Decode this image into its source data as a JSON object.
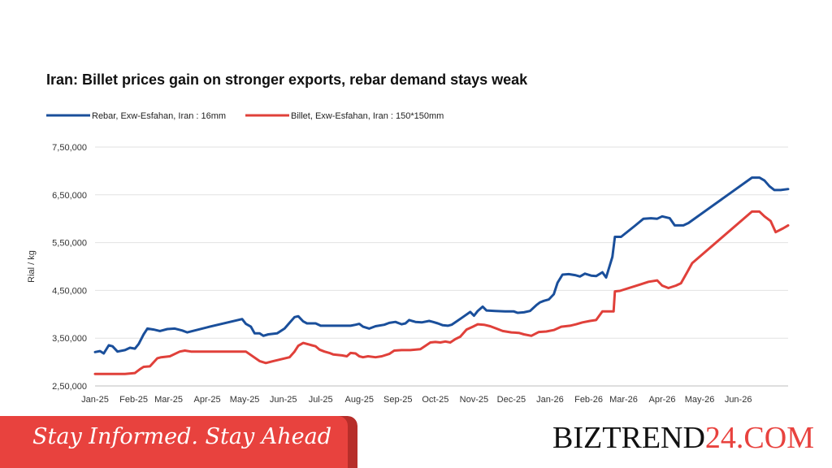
{
  "colors": {
    "rebar": "#1a4f9b",
    "billet": "#e0403a",
    "banner_red": "#e8423e",
    "banner_shade": "#b72e2a",
    "grid": "#e2e2e2",
    "axis_text": "#333333",
    "brand_dark": "#111111",
    "brand_red": "#e8423e"
  },
  "banner": {
    "tagline": "Stay Informed. Stay Ahead",
    "brand_part1": "BIZTREND",
    "brand_part2": "24",
    "brand_part3": ".COM"
  },
  "chart_data": {
    "type": "line",
    "title": "Iran: Billet prices gain on stronger exports, rebar demand stays weak",
    "ylabel": "Rial / kg",
    "xlabel": "",
    "ylim": [
      250000,
      750000
    ],
    "yticks": [
      {
        "value": 250000,
        "label": "2,50,000"
      },
      {
        "value": 350000,
        "label": "3,50,000"
      },
      {
        "value": 450000,
        "label": "4,50,000"
      },
      {
        "value": 550000,
        "label": "5,50,000"
      },
      {
        "value": 650000,
        "label": "6,50,000"
      },
      {
        "value": 750000,
        "label": "7,50,000"
      }
    ],
    "grid": true,
    "legend_position": "top-left",
    "x_tick_labels": [
      {
        "date": "2025-01-01",
        "label": "Jan-25"
      },
      {
        "date": "2025-02-01",
        "label": "Feb-25"
      },
      {
        "date": "2025-03-01",
        "label": "Mar-25"
      },
      {
        "date": "2025-04-01",
        "label": "Apr-25"
      },
      {
        "date": "2025-05-01",
        "label": "May-25"
      },
      {
        "date": "2025-06-01",
        "label": "Jun-25"
      },
      {
        "date": "2025-07-01",
        "label": "Jul-25"
      },
      {
        "date": "2025-08-01",
        "label": "Aug-25"
      },
      {
        "date": "2025-09-01",
        "label": "Sep-25"
      },
      {
        "date": "2025-10-01",
        "label": "Oct-25"
      },
      {
        "date": "2025-11-01",
        "label": "Nov-25"
      },
      {
        "date": "2025-12-01",
        "label": "Dec-25"
      },
      {
        "date": "2026-01-01",
        "label": "Jan-26"
      },
      {
        "date": "2026-02-01",
        "label": "Feb-26"
      },
      {
        "date": "2026-03-01",
        "label": "Mar-26"
      },
      {
        "date": "2026-04-01",
        "label": "Apr-26"
      },
      {
        "date": "2026-05-01",
        "label": "May-26"
      },
      {
        "date": "2026-06-01",
        "label": "Jun-26"
      }
    ],
    "series": [
      {
        "name": "Rebar, Exw-Esfahan, Iran : 16mm",
        "color": "#1a4f9b",
        "points": [
          [
            "2025-01-01",
            321000
          ],
          [
            "2025-01-05",
            323000
          ],
          [
            "2025-01-08",
            318000
          ],
          [
            "2025-01-12",
            335000
          ],
          [
            "2025-01-15",
            333000
          ],
          [
            "2025-01-19",
            322000
          ],
          [
            "2025-01-25",
            325000
          ],
          [
            "2025-01-29",
            330000
          ],
          [
            "2025-02-02",
            328000
          ],
          [
            "2025-02-05",
            338000
          ],
          [
            "2025-02-09",
            358000
          ],
          [
            "2025-02-12",
            370000
          ],
          [
            "2025-02-17",
            368000
          ],
          [
            "2025-02-22",
            365000
          ],
          [
            "2025-02-28",
            369000
          ],
          [
            "2025-03-06",
            370000
          ],
          [
            "2025-03-12",
            366000
          ],
          [
            "2025-03-16",
            362000
          ],
          [
            "2025-04-03",
            374000
          ],
          [
            "2025-04-29",
            390000
          ],
          [
            "2025-05-02",
            380000
          ],
          [
            "2025-05-06",
            374000
          ],
          [
            "2025-05-09",
            360000
          ],
          [
            "2025-05-13",
            360000
          ],
          [
            "2025-05-16",
            355000
          ],
          [
            "2025-05-20",
            358000
          ],
          [
            "2025-05-27",
            360000
          ],
          [
            "2025-06-02",
            370000
          ],
          [
            "2025-06-06",
            382000
          ],
          [
            "2025-06-10",
            394000
          ],
          [
            "2025-06-13",
            396000
          ],
          [
            "2025-06-17",
            385000
          ],
          [
            "2025-06-20",
            381000
          ],
          [
            "2025-06-27",
            381000
          ],
          [
            "2025-07-01",
            376000
          ],
          [
            "2025-07-08",
            376000
          ],
          [
            "2025-07-18",
            376000
          ],
          [
            "2025-07-25",
            376000
          ],
          [
            "2025-07-29",
            378000
          ],
          [
            "2025-08-01",
            380000
          ],
          [
            "2025-08-04",
            374000
          ],
          [
            "2025-08-09",
            370000
          ],
          [
            "2025-08-14",
            375000
          ],
          [
            "2025-08-21",
            378000
          ],
          [
            "2025-08-25",
            382000
          ],
          [
            "2025-08-30",
            384000
          ],
          [
            "2025-09-04",
            379000
          ],
          [
            "2025-09-07",
            381000
          ],
          [
            "2025-09-10",
            388000
          ],
          [
            "2025-09-15",
            384000
          ],
          [
            "2025-09-20",
            383000
          ],
          [
            "2025-09-26",
            386000
          ],
          [
            "2025-09-29",
            384000
          ],
          [
            "2025-10-03",
            381000
          ],
          [
            "2025-10-07",
            377000
          ],
          [
            "2025-10-11",
            376000
          ],
          [
            "2025-10-14",
            378000
          ],
          [
            "2025-10-18",
            385000
          ],
          [
            "2025-10-23",
            394000
          ],
          [
            "2025-10-29",
            405000
          ],
          [
            "2025-11-01",
            397000
          ],
          [
            "2025-11-04",
            407000
          ],
          [
            "2025-11-08",
            416000
          ],
          [
            "2025-11-11",
            408000
          ],
          [
            "2025-11-18",
            407000
          ],
          [
            "2025-11-26",
            406000
          ],
          [
            "2025-12-03",
            406000
          ],
          [
            "2025-12-06",
            403000
          ],
          [
            "2025-12-11",
            404000
          ],
          [
            "2025-12-16",
            407000
          ],
          [
            "2025-12-21",
            419000
          ],
          [
            "2025-12-24",
            425000
          ],
          [
            "2025-12-27",
            428000
          ],
          [
            "2025-12-31",
            431000
          ],
          [
            "2026-01-04",
            442000
          ],
          [
            "2026-01-07",
            466000
          ],
          [
            "2026-01-11",
            483000
          ],
          [
            "2026-01-16",
            484000
          ],
          [
            "2026-01-21",
            482000
          ],
          [
            "2026-01-25",
            479000
          ],
          [
            "2026-01-29",
            485000
          ],
          [
            "2026-02-03",
            481000
          ],
          [
            "2026-02-07",
            480000
          ],
          [
            "2026-02-12",
            488000
          ],
          [
            "2026-02-15",
            477000
          ],
          [
            "2026-02-20",
            520000
          ],
          [
            "2026-02-22",
            562000
          ],
          [
            "2026-02-27",
            562000
          ],
          [
            "2026-03-10",
            585000
          ],
          [
            "2026-03-17",
            600000
          ],
          [
            "2026-03-23",
            601000
          ],
          [
            "2026-03-28",
            600000
          ],
          [
            "2026-04-01",
            605000
          ],
          [
            "2026-04-07",
            601000
          ],
          [
            "2026-04-11",
            586000
          ],
          [
            "2026-04-18",
            586000
          ],
          [
            "2026-04-22",
            591000
          ],
          [
            "2026-06-12",
            686000
          ],
          [
            "2026-06-18",
            686000
          ],
          [
            "2026-06-22",
            680000
          ],
          [
            "2026-06-26",
            668000
          ],
          [
            "2026-06-30",
            660000
          ],
          [
            "2026-07-05",
            660000
          ],
          [
            "2026-07-11",
            662000
          ]
        ]
      },
      {
        "name": "Billet, Exw-Esfahan, Iran : 150*150mm",
        "color": "#e0403a",
        "points": [
          [
            "2025-01-01",
            275000
          ],
          [
            "2025-01-25",
            275000
          ],
          [
            "2025-02-02",
            277000
          ],
          [
            "2025-02-06",
            285000
          ],
          [
            "2025-02-09",
            290000
          ],
          [
            "2025-02-14",
            291000
          ],
          [
            "2025-02-20",
            308000
          ],
          [
            "2025-02-23",
            310000
          ],
          [
            "2025-03-02",
            312000
          ],
          [
            "2025-03-10",
            322000
          ],
          [
            "2025-03-14",
            324000
          ],
          [
            "2025-03-19",
            322000
          ],
          [
            "2025-05-02",
            322000
          ],
          [
            "2025-05-13",
            302000
          ],
          [
            "2025-05-18",
            298000
          ],
          [
            "2025-05-24",
            302000
          ],
          [
            "2025-06-06",
            310000
          ],
          [
            "2025-06-10",
            322000
          ],
          [
            "2025-06-13",
            334000
          ],
          [
            "2025-06-17",
            340000
          ],
          [
            "2025-06-24",
            335000
          ],
          [
            "2025-06-27",
            333000
          ],
          [
            "2025-06-30",
            326000
          ],
          [
            "2025-07-04",
            322000
          ],
          [
            "2025-07-08",
            319000
          ],
          [
            "2025-07-11",
            316000
          ],
          [
            "2025-07-18",
            314000
          ],
          [
            "2025-07-22",
            312000
          ],
          [
            "2025-07-25",
            319000
          ],
          [
            "2025-07-29",
            318000
          ],
          [
            "2025-08-01",
            312000
          ],
          [
            "2025-08-04",
            310000
          ],
          [
            "2025-08-08",
            312000
          ],
          [
            "2025-08-14",
            310000
          ],
          [
            "2025-08-19",
            312000
          ],
          [
            "2025-08-25",
            317000
          ],
          [
            "2025-08-29",
            324000
          ],
          [
            "2025-09-04",
            325000
          ],
          [
            "2025-09-11",
            325000
          ],
          [
            "2025-09-19",
            327000
          ],
          [
            "2025-09-23",
            334000
          ],
          [
            "2025-09-27",
            341000
          ],
          [
            "2025-10-01",
            342000
          ],
          [
            "2025-10-05",
            341000
          ],
          [
            "2025-10-09",
            343000
          ],
          [
            "2025-10-13",
            341000
          ],
          [
            "2025-10-17",
            348000
          ],
          [
            "2025-10-21",
            353000
          ],
          [
            "2025-10-26",
            368000
          ],
          [
            "2025-10-31",
            374000
          ],
          [
            "2025-11-04",
            379000
          ],
          [
            "2025-11-09",
            378000
          ],
          [
            "2025-11-14",
            375000
          ],
          [
            "2025-11-19",
            370000
          ],
          [
            "2025-11-24",
            365000
          ],
          [
            "2025-12-01",
            362000
          ],
          [
            "2025-12-07",
            361000
          ],
          [
            "2025-12-11",
            358000
          ],
          [
            "2025-12-17",
            355000
          ],
          [
            "2025-12-23",
            363000
          ],
          [
            "2025-12-29",
            364000
          ],
          [
            "2026-01-04",
            367000
          ],
          [
            "2026-01-10",
            374000
          ],
          [
            "2026-01-17",
            376000
          ],
          [
            "2026-01-22",
            379000
          ],
          [
            "2026-01-27",
            383000
          ],
          [
            "2026-02-02",
            386000
          ],
          [
            "2026-02-07",
            388000
          ],
          [
            "2026-02-12",
            406000
          ],
          [
            "2026-02-18",
            406000
          ],
          [
            "2026-02-21",
            406000
          ],
          [
            "2026-02-22",
            448000
          ],
          [
            "2026-02-26",
            449000
          ],
          [
            "2026-03-14",
            462000
          ],
          [
            "2026-03-21",
            468000
          ],
          [
            "2026-03-28",
            471000
          ],
          [
            "2026-04-01",
            460000
          ],
          [
            "2026-04-06",
            455000
          ],
          [
            "2026-04-12",
            460000
          ],
          [
            "2026-04-16",
            465000
          ],
          [
            "2026-04-21",
            488000
          ],
          [
            "2026-04-25",
            507000
          ],
          [
            "2026-06-12",
            615000
          ],
          [
            "2026-06-18",
            615000
          ],
          [
            "2026-06-22",
            605000
          ],
          [
            "2026-06-27",
            595000
          ],
          [
            "2026-07-01",
            572000
          ],
          [
            "2026-07-07",
            580000
          ],
          [
            "2026-07-11",
            586000
          ]
        ]
      }
    ]
  }
}
